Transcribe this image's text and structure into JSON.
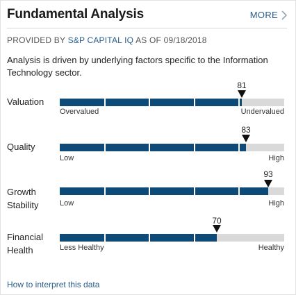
{
  "header": {
    "title": "Fundamental Analysis",
    "more_label": "MORE"
  },
  "provider": {
    "prefix": "PROVIDED BY",
    "name": "S&P CAPITAL IQ",
    "suffix": "AS OF 09/18/2018"
  },
  "description": "Analysis is driven by underlying factors specific to the Information Technology sector.",
  "metrics": [
    {
      "label": "Valuation",
      "score": 81,
      "low_label": "Overvalued",
      "high_label": "Undervalued"
    },
    {
      "label": "Quality",
      "score": 83,
      "low_label": "Low",
      "high_label": "High"
    },
    {
      "label": "Growth Stability",
      "score": 93,
      "low_label": "Low",
      "high_label": "High"
    },
    {
      "label": "Financial Health",
      "score": 70,
      "low_label": "Less Healthy",
      "high_label": "Healthy"
    }
  ],
  "score_scale_max": 100,
  "footer": {
    "link_label": "How to interpret this data"
  },
  "colors": {
    "bar_fill": "#0e4a78",
    "bar_track": "#d9d9d9",
    "link": "#2a5c8c"
  }
}
